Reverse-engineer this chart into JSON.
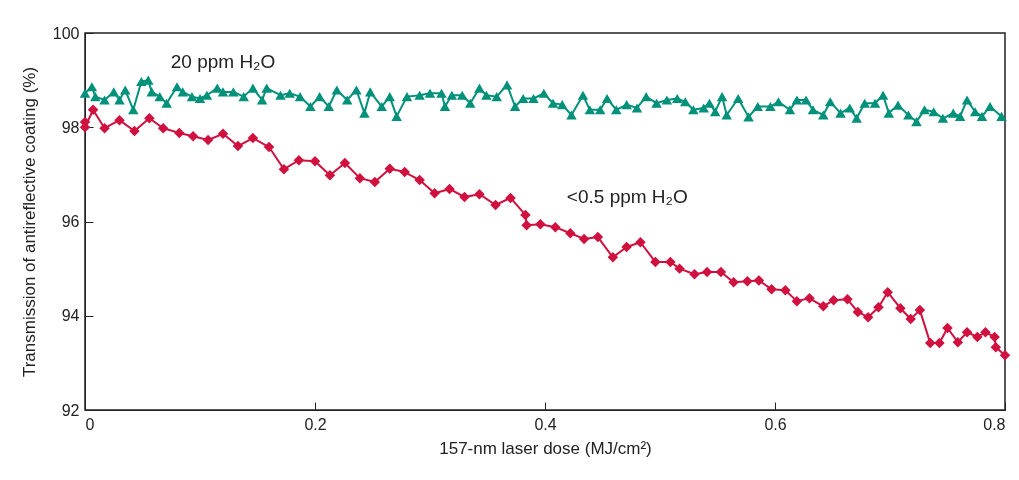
{
  "chart_data": {
    "type": "line",
    "xlabel": "157-nm laser dose (MJ/cm²)",
    "ylabel": "Transmission of antireflective coating (%)",
    "xlim": [
      0,
      0.8
    ],
    "ylim": [
      92,
      100
    ],
    "xticks": [
      0,
      0.2,
      0.4,
      0.6,
      0.8
    ],
    "yticks": [
      92,
      94,
      96,
      98,
      100
    ],
    "grid": false,
    "series": [
      {
        "name": "20 ppm H₂O",
        "color": "#00917a",
        "marker": "triangle",
        "x": [
          0,
          0.006,
          0.009,
          0.017,
          0.025,
          0.03,
          0.035,
          0.042,
          0.049,
          0.055,
          0.058,
          0.065,
          0.071,
          0.08,
          0.085,
          0.093,
          0.1,
          0.106,
          0.115,
          0.12,
          0.129,
          0.138,
          0.146,
          0.154,
          0.158,
          0.17,
          0.178,
          0.187,
          0.196,
          0.204,
          0.212,
          0.219,
          0.228,
          0.236,
          0.243,
          0.248,
          0.258,
          0.265,
          0.271,
          0.28,
          0.291,
          0.3,
          0.31,
          0.313,
          0.319,
          0.328,
          0.335,
          0.343,
          0.349,
          0.358,
          0.367,
          0.374,
          0.381,
          0.39,
          0.399,
          0.407,
          0.415,
          0.423,
          0.433,
          0.439,
          0.448,
          0.454,
          0.462,
          0.471,
          0.48,
          0.488,
          0.497,
          0.506,
          0.515,
          0.522,
          0.529,
          0.538,
          0.543,
          0.548,
          0.554,
          0.558,
          0.568,
          0.577,
          0.585,
          0.596,
          0.603,
          0.613,
          0.619,
          0.627,
          0.633,
          0.642,
          0.648,
          0.657,
          0.665,
          0.671,
          0.678,
          0.687,
          0.694,
          0.699,
          0.707,
          0.716,
          0.723,
          0.73,
          0.738,
          0.746,
          0.755,
          0.761,
          0.767,
          0.774,
          0.78,
          0.787,
          0.797
        ],
        "values": [
          98.72,
          98.86,
          98.65,
          98.58,
          98.75,
          98.58,
          98.79,
          98.37,
          98.97,
          99.0,
          98.75,
          98.65,
          98.51,
          98.86,
          98.75,
          98.65,
          98.61,
          98.68,
          98.83,
          98.75,
          98.75,
          98.65,
          98.83,
          98.58,
          98.83,
          98.68,
          98.72,
          98.65,
          98.44,
          98.65,
          98.44,
          98.79,
          98.58,
          98.79,
          98.3,
          98.75,
          98.44,
          98.65,
          98.23,
          98.65,
          98.68,
          98.72,
          98.72,
          98.44,
          98.68,
          98.68,
          98.51,
          98.83,
          98.68,
          98.65,
          98.9,
          98.44,
          98.61,
          98.61,
          98.72,
          98.51,
          98.48,
          98.26,
          98.68,
          98.37,
          98.37,
          98.61,
          98.37,
          98.48,
          98.41,
          98.65,
          98.51,
          98.58,
          98.61,
          98.54,
          98.37,
          98.41,
          98.51,
          98.33,
          98.65,
          98.26,
          98.61,
          98.22,
          98.44,
          98.44,
          98.54,
          98.37,
          98.58,
          98.58,
          98.37,
          98.26,
          98.54,
          98.3,
          98.41,
          98.19,
          98.51,
          98.51,
          98.68,
          98.3,
          98.47,
          98.26,
          98.12,
          98.37,
          98.33,
          98.19,
          98.3,
          98.23,
          98.58,
          98.33,
          98.23,
          98.44,
          98.23
        ]
      },
      {
        "name": "<0.5 ppm H₂O",
        "color": "#d0103e",
        "marker": "diamond",
        "x": [
          0,
          0,
          0.007,
          0.017,
          0.03,
          0.043,
          0.056,
          0.068,
          0.082,
          0.094,
          0.107,
          0.12,
          0.133,
          0.146,
          0.16,
          0.173,
          0.186,
          0.2,
          0.213,
          0.226,
          0.239,
          0.252,
          0.265,
          0.278,
          0.291,
          0.304,
          0.317,
          0.33,
          0.343,
          0.357,
          0.37,
          0.383,
          0.384,
          0.396,
          0.409,
          0.422,
          0.434,
          0.446,
          0.459,
          0.471,
          0.483,
          0.496,
          0.509,
          0.517,
          0.53,
          0.541,
          0.553,
          0.564,
          0.576,
          0.586,
          0.597,
          0.609,
          0.619,
          0.63,
          0.642,
          0.651,
          0.663,
          0.672,
          0.681,
          0.69,
          0.698,
          0.709,
          0.718,
          0.726,
          0.735,
          0.743,
          0.75,
          0.759,
          0.767,
          0.776,
          0.783,
          0.791,
          0.792,
          0.8
        ],
        "values": [
          98.11,
          98.0,
          98.37,
          97.98,
          98.15,
          97.92,
          98.19,
          97.98,
          97.88,
          97.81,
          97.73,
          97.86,
          97.6,
          97.77,
          97.58,
          97.11,
          97.3,
          97.28,
          96.98,
          97.24,
          96.92,
          96.84,
          97.12,
          97.05,
          96.88,
          96.6,
          96.69,
          96.52,
          96.58,
          96.35,
          96.5,
          96.14,
          95.92,
          95.94,
          95.88,
          95.75,
          95.63,
          95.67,
          95.24,
          95.46,
          95.56,
          95.14,
          95.14,
          95.0,
          94.88,
          94.93,
          94.93,
          94.71,
          94.73,
          94.75,
          94.56,
          94.54,
          94.31,
          94.37,
          94.2,
          94.33,
          94.35,
          94.08,
          93.97,
          94.18,
          94.5,
          94.16,
          93.93,
          94.12,
          93.42,
          93.42,
          93.74,
          93.44,
          93.65,
          93.55,
          93.65,
          93.55,
          93.33,
          93.16
        ]
      }
    ]
  }
}
